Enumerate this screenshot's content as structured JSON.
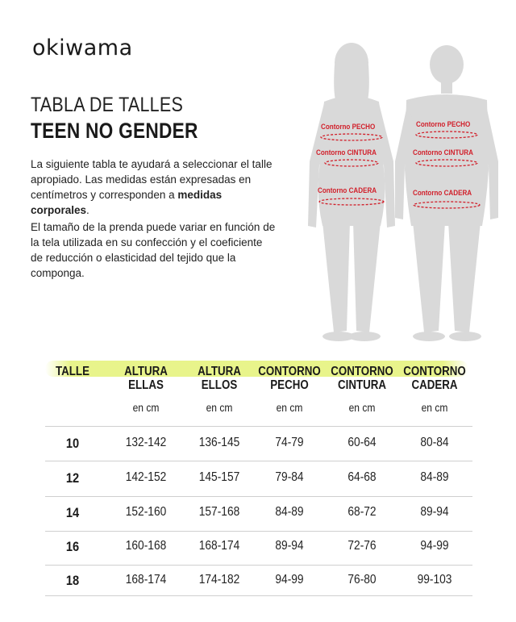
{
  "brand": {
    "logo_text": "okiwama"
  },
  "title": {
    "line1": "TABLA DE TALLES",
    "line2": "TEEN NO GENDER"
  },
  "intro": {
    "p1_before": "La siguiente tabla te ayudará a seleccionar el talle apropiado. Las medidas están expresadas en centímetros y corresponden a ",
    "p1_bold": "medidas corporales",
    "p1_after": ".",
    "p2": "El tamaño de la prenda puede variar en función de la tela utilizada en su confección y el coeficiente de reducción o elasticidad del tejido que la componga."
  },
  "figures": {
    "labels": {
      "chest": "Contorno PECHO",
      "waist": "Contorno CINTURA",
      "hip": "Contorno CADERA"
    },
    "silhouette_color": "#d9d9d9",
    "measure_color": "#d11f2a"
  },
  "table": {
    "highlight_color": "#e1f064",
    "headers": [
      {
        "l1": "TALLE",
        "l2": ""
      },
      {
        "l1": "ALTURA",
        "l2": "ELLAS"
      },
      {
        "l1": "ALTURA",
        "l2": "ELLOS"
      },
      {
        "l1": "CONTORNO",
        "l2": "PECHO"
      },
      {
        "l1": "CONTORNO",
        "l2": "CINTURA"
      },
      {
        "l1": "CONTORNO",
        "l2": "CADERA"
      }
    ],
    "unit": "en cm",
    "rows": [
      [
        "10",
        "132-142",
        "136-145",
        "74-79",
        "60-64",
        "80-84"
      ],
      [
        "12",
        "142-152",
        "145-157",
        "79-84",
        "64-68",
        "84-89"
      ],
      [
        "14",
        "152-160",
        "157-168",
        "84-89",
        "68-72",
        "89-94"
      ],
      [
        "16",
        "160-168",
        "168-174",
        "89-94",
        "72-76",
        "94-99"
      ],
      [
        "18",
        "168-174",
        "174-182",
        "94-99",
        "76-80",
        "99-103"
      ]
    ]
  }
}
